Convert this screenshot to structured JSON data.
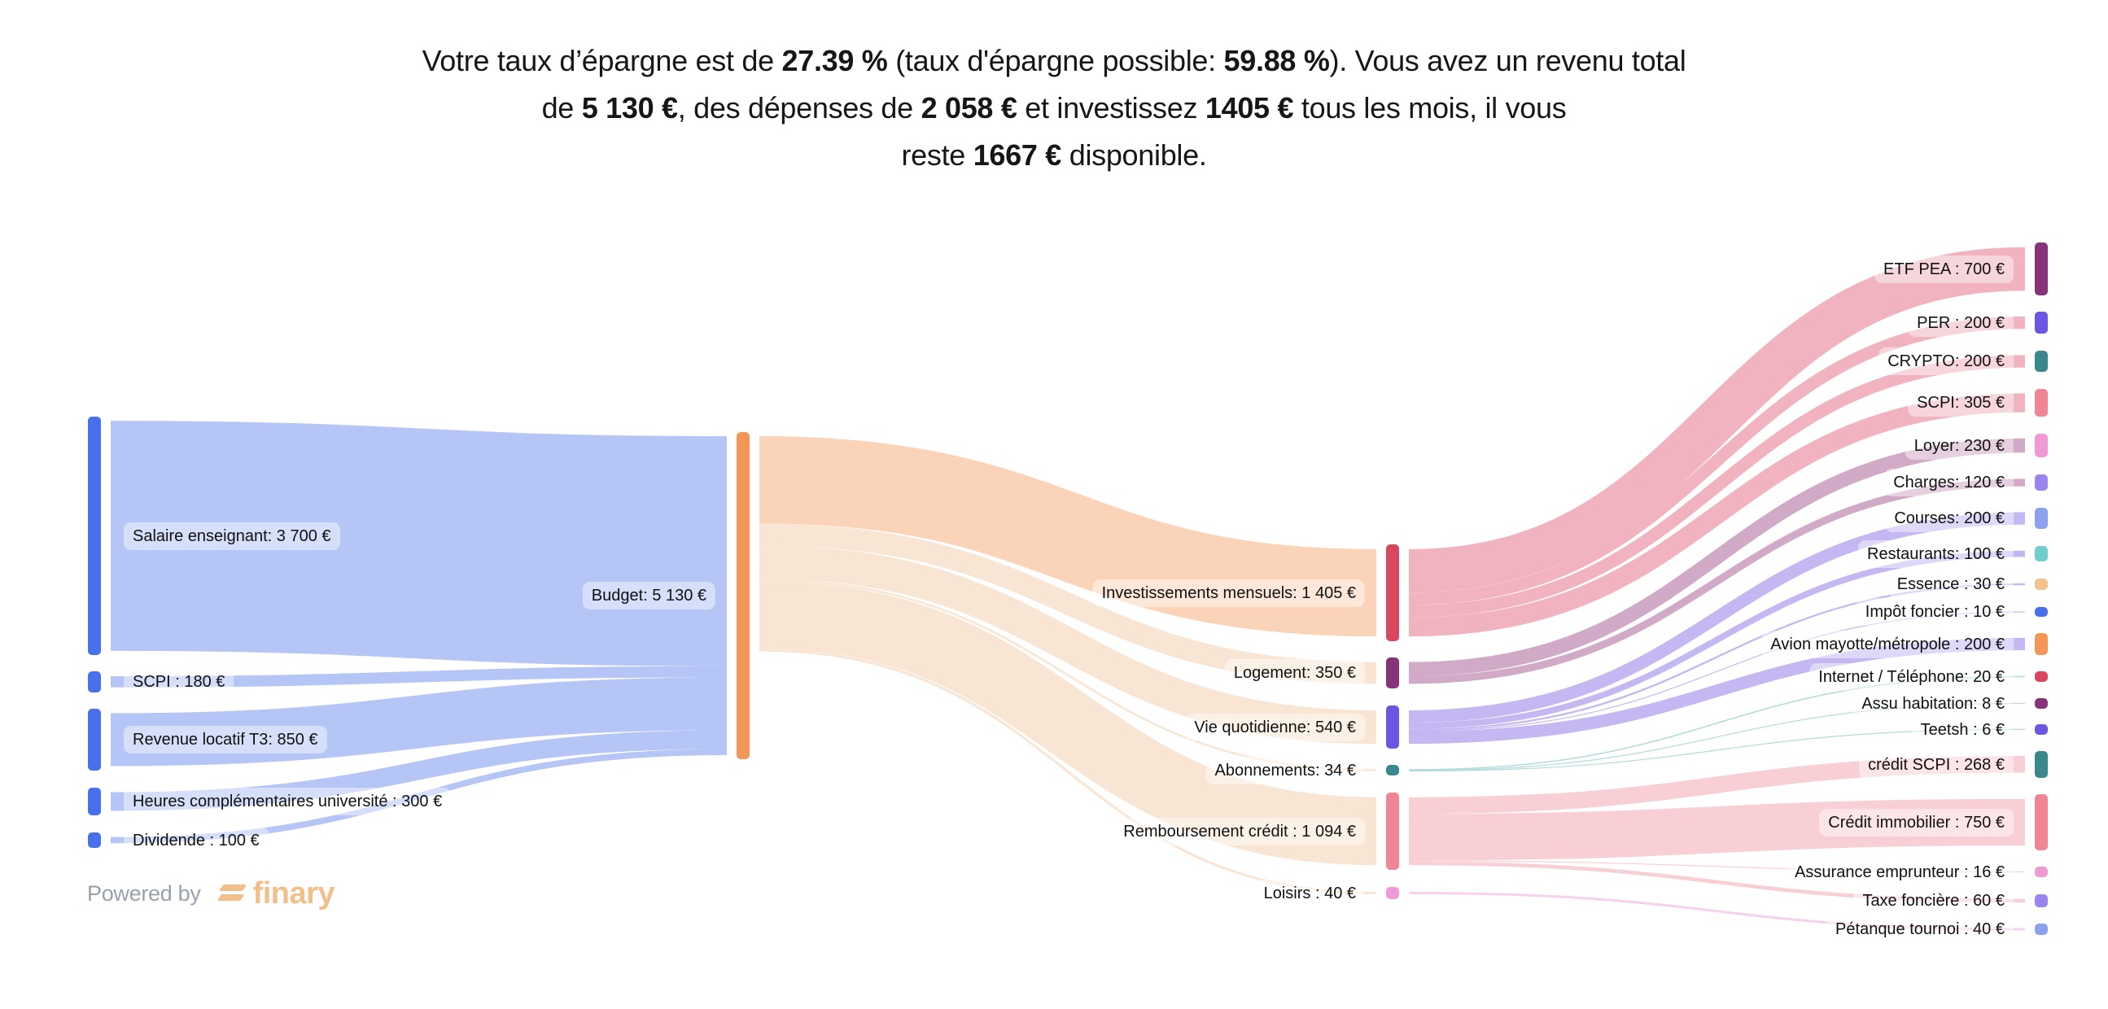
{
  "summary": {
    "lines": [
      [
        {
          "t": "Votre taux d’épargne est de ",
          "b": false
        },
        {
          "t": "27.39 %",
          "b": true
        },
        {
          "t": " (taux d'épargne possible: ",
          "b": false
        },
        {
          "t": "59.88 %",
          "b": true
        },
        {
          "t": "). Vous avez un revenu total",
          "b": false
        }
      ],
      [
        {
          "t": "de ",
          "b": false
        },
        {
          "t": "5 130 €",
          "b": true
        },
        {
          "t": ", des dépenses de ",
          "b": false
        },
        {
          "t": "2 058 €",
          "b": true
        },
        {
          "t": " et investissez ",
          "b": false
        },
        {
          "t": "1405 €",
          "b": true
        },
        {
          "t": " tous les mois, il vous",
          "b": false
        }
      ],
      [
        {
          "t": "reste ",
          "b": false
        },
        {
          "t": "1667 €",
          "b": true
        },
        {
          "t": " disponible.",
          "b": false
        }
      ]
    ]
  },
  "footer": {
    "powered_by": "Powered by",
    "brand": "finary",
    "brand_icon": "finary-logo-icon"
  },
  "chart_data": {
    "type": "sankey",
    "title": "",
    "unit": "€",
    "nodes": [
      {
        "id": "salaire",
        "label": "Salaire enseignant: 3 700 €",
        "value": 3700,
        "column": 0,
        "color": "#4870eb"
      },
      {
        "id": "scpi_in",
        "label": "SCPI : 180 €",
        "value": 180,
        "column": 0,
        "color": "#4870eb"
      },
      {
        "id": "revenue_t3",
        "label": "Revenue locatif T3: 850 €",
        "value": 850,
        "column": 0,
        "color": "#4870eb"
      },
      {
        "id": "heures",
        "label": "Heures complémentaires université : 300 €",
        "value": 300,
        "column": 0,
        "color": "#4870eb"
      },
      {
        "id": "dividende",
        "label": "Dividende : 100 €",
        "value": 100,
        "column": 0,
        "color": "#4870eb"
      },
      {
        "id": "budget",
        "label": "Budget: 5 130 €",
        "value": 5130,
        "column": 1,
        "color": "#f59659"
      },
      {
        "id": "invest",
        "label": "Investissements mensuels: 1 405 €",
        "value": 1405,
        "column": 2,
        "color": "#d9475f"
      },
      {
        "id": "logement",
        "label": "Logement: 350 €",
        "value": 350,
        "column": 2,
        "color": "#873378"
      },
      {
        "id": "vie",
        "label": "Vie quotidienne: 540 €",
        "value": 540,
        "column": 2,
        "color": "#6c55e0"
      },
      {
        "id": "abonnements",
        "label": "Abonnements: 34 €",
        "value": 34,
        "column": 2,
        "color": "#3a888b"
      },
      {
        "id": "remboursement",
        "label": "Remboursement crédit : 1 094 €",
        "value": 1094,
        "column": 2,
        "color": "#f08595"
      },
      {
        "id": "loisirs",
        "label": "Loisirs : 40 €",
        "value": 40,
        "column": 2,
        "color": "#f09ad5"
      },
      {
        "id": "etf_pea",
        "label": "ETF PEA : 700 €",
        "value": 700,
        "column": 3,
        "color": "#873378"
      },
      {
        "id": "per",
        "label": "PER : 200 €",
        "value": 200,
        "column": 3,
        "color": "#6c55e0"
      },
      {
        "id": "crypto",
        "label": "CRYPTO: 200 €",
        "value": 200,
        "column": 3,
        "color": "#3a888b"
      },
      {
        "id": "scpi_out",
        "label": "SCPI: 305 €",
        "value": 305,
        "column": 3,
        "color": "#f08595"
      },
      {
        "id": "loyer",
        "label": "Loyer: 230 €",
        "value": 230,
        "column": 3,
        "color": "#f09ad5"
      },
      {
        "id": "charges",
        "label": "Charges: 120 €",
        "value": 120,
        "column": 3,
        "color": "#9b84ec"
      },
      {
        "id": "courses",
        "label": "Courses: 200 €",
        "value": 200,
        "column": 3,
        "color": "#8ca2ef"
      },
      {
        "id": "restaurants",
        "label": "Restaurants: 100 €",
        "value": 100,
        "column": 3,
        "color": "#72cdcf"
      },
      {
        "id": "essence",
        "label": "Essence : 30 €",
        "value": 30,
        "column": 3,
        "color": "#f2c28c"
      },
      {
        "id": "impot",
        "label": "Impôt foncier : 10 €",
        "value": 10,
        "column": 3,
        "color": "#4870eb"
      },
      {
        "id": "avion",
        "label": "Avion mayotte/métropole : 200 €",
        "value": 200,
        "column": 3,
        "color": "#f59659"
      },
      {
        "id": "internet",
        "label": "Internet / Téléphone: 20 €",
        "value": 20,
        "column": 3,
        "color": "#d9475f"
      },
      {
        "id": "assu_hab",
        "label": "Assu habitation: 8 €",
        "value": 8,
        "column": 3,
        "color": "#873378"
      },
      {
        "id": "teetsh",
        "label": "Teetsh : 6 €",
        "value": 6,
        "column": 3,
        "color": "#6c55e0"
      },
      {
        "id": "credit_scpi",
        "label": "crédit SCPI : 268 €",
        "value": 268,
        "column": 3,
        "color": "#3a888b"
      },
      {
        "id": "credit_immo",
        "label": "Crédit immobilier : 750 €",
        "value": 750,
        "column": 3,
        "color": "#f08595"
      },
      {
        "id": "assur_emp",
        "label": "Assurance emprunteur : 16 €",
        "value": 16,
        "column": 3,
        "color": "#f09ad5"
      },
      {
        "id": "taxe",
        "label": "Taxe foncière : 60 €",
        "value": 60,
        "column": 3,
        "color": "#9b84ec"
      },
      {
        "id": "petanque",
        "label": "Pétanque tournoi : 40 €",
        "value": 40,
        "column": 3,
        "color": "#8ca2ef"
      }
    ],
    "links": [
      {
        "source": "salaire",
        "target": "budget",
        "value": 3700,
        "color": "#b5c5f5"
      },
      {
        "source": "scpi_in",
        "target": "budget",
        "value": 180,
        "color": "#b5c5f5"
      },
      {
        "source": "revenue_t3",
        "target": "budget",
        "value": 850,
        "color": "#b5c5f5"
      },
      {
        "source": "heures",
        "target": "budget",
        "value": 300,
        "color": "#b5c5f5"
      },
      {
        "source": "dividende",
        "target": "budget",
        "value": 100,
        "color": "#b5c5f5"
      },
      {
        "source": "budget",
        "target": "invest",
        "value": 1405,
        "color": "#fbd3b8"
      },
      {
        "source": "budget",
        "target": "logement",
        "value": 350,
        "color": "#f9e5d3"
      },
      {
        "source": "budget",
        "target": "vie",
        "value": 540,
        "color": "#f9e5d3"
      },
      {
        "source": "budget",
        "target": "abonnements",
        "value": 34,
        "color": "#f9e5d3"
      },
      {
        "source": "budget",
        "target": "remboursement",
        "value": 1094,
        "color": "#f9e5d3"
      },
      {
        "source": "budget",
        "target": "loisirs",
        "value": 40,
        "color": "#f9e5d3"
      },
      {
        "source": "invest",
        "target": "etf_pea",
        "value": 700,
        "color": "#f0b3bf"
      },
      {
        "source": "invest",
        "target": "per",
        "value": 200,
        "color": "#f0b3bf"
      },
      {
        "source": "invest",
        "target": "crypto",
        "value": 200,
        "color": "#f0b3bf"
      },
      {
        "source": "invest",
        "target": "scpi_out",
        "value": 305,
        "color": "#f0b3bf"
      },
      {
        "source": "logement",
        "target": "loyer",
        "value": 230,
        "color": "#d1aac7"
      },
      {
        "source": "logement",
        "target": "charges",
        "value": 120,
        "color": "#d1aac7"
      },
      {
        "source": "vie",
        "target": "courses",
        "value": 200,
        "color": "#c5b8f2"
      },
      {
        "source": "vie",
        "target": "restaurants",
        "value": 100,
        "color": "#c5b8f2"
      },
      {
        "source": "vie",
        "target": "essence",
        "value": 30,
        "color": "#c5b8f2"
      },
      {
        "source": "vie",
        "target": "impot",
        "value": 10,
        "color": "#c5b8f2"
      },
      {
        "source": "vie",
        "target": "avion",
        "value": 200,
        "color": "#c5b8f2"
      },
      {
        "source": "abonnements",
        "target": "internet",
        "value": 20,
        "color": "#b3dbd9"
      },
      {
        "source": "abonnements",
        "target": "assu_hab",
        "value": 8,
        "color": "#b3dbd9"
      },
      {
        "source": "abonnements",
        "target": "teetsh",
        "value": 6,
        "color": "#b3dbd9"
      },
      {
        "source": "remboursement",
        "target": "credit_scpi",
        "value": 268,
        "color": "#f9cfd6"
      },
      {
        "source": "remboursement",
        "target": "credit_immo",
        "value": 750,
        "color": "#f9cfd6"
      },
      {
        "source": "remboursement",
        "target": "assur_emp",
        "value": 16,
        "color": "#f9cfd6"
      },
      {
        "source": "remboursement",
        "target": "taxe",
        "value": 60,
        "color": "#f9cfd6"
      },
      {
        "source": "loisirs",
        "target": "petanque",
        "value": 40,
        "color": "#f7d2ec"
      }
    ]
  }
}
